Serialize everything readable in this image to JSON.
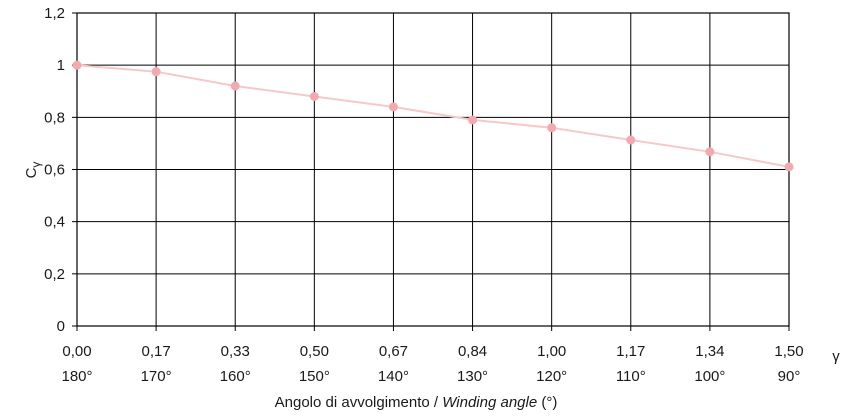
{
  "chart_data": {
    "type": "line",
    "x_radians": [
      "0,00",
      "0,17",
      "0,33",
      "0,50",
      "0,67",
      "0,84",
      "1,00",
      "1,17",
      "1,34",
      "1,50"
    ],
    "x_degrees": [
      "180°",
      "170°",
      "160°",
      "150°",
      "140°",
      "130°",
      "120°",
      "110°",
      "100°",
      "90°"
    ],
    "values": [
      1.0,
      0.975,
      0.92,
      0.88,
      0.84,
      0.79,
      0.76,
      0.713,
      0.668,
      0.61
    ],
    "y_ticks": [
      "0",
      "0,2",
      "0,4",
      "0,6",
      "0,8",
      "1",
      "1,2"
    ],
    "ylim": [
      0,
      1.2
    ],
    "ylabel_main": "C",
    "ylabel_sub": "γ",
    "x_symbol": "γ",
    "xlabel_prefix": "Angolo di avvolgimento / ",
    "xlabel_italic": "Winding angle",
    "xlabel_suffix": " (°)",
    "grid": true,
    "legend": "none",
    "colors": {
      "line": "#f8c8c8",
      "marker": "#f4a8b0",
      "grid": "#000000",
      "text": "#1a1a1a"
    }
  }
}
